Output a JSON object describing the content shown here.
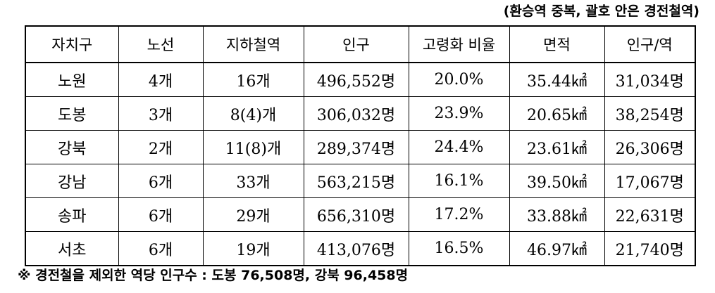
{
  "top_note": "(환승역 중복, 괄호 안은 경전철역)",
  "table": {
    "headers": [
      "자치구",
      "노선",
      "지하철역",
      "인구",
      "고령화 비율",
      "면적",
      "인구/역"
    ],
    "rows": [
      [
        "노원",
        "4개",
        "16개",
        "496,552명",
        "20.0%",
        "35.44㎢",
        "31,034명"
      ],
      [
        "도봉",
        "3개",
        "8(4)개",
        "306,032명",
        "23.9%",
        "20.65㎢",
        "38,254명"
      ],
      [
        "강북",
        "2개",
        "11(8)개",
        "289,374명",
        "24.4%",
        "23.61㎢",
        "26,306명"
      ],
      [
        "강남",
        "6개",
        "33개",
        "563,215명",
        "16.1%",
        "39.50㎢",
        "17,067명"
      ],
      [
        "송파",
        "6개",
        "29개",
        "656,310명",
        "17.2%",
        "33.88㎢",
        "22,631명"
      ],
      [
        "서초",
        "6개",
        "19개",
        "413,076명",
        "16.5%",
        "46.97㎢",
        "21,740명"
      ]
    ]
  },
  "bottom_note": "※ 경전철을 제외한 역당 인구수 : 도봉 76,508명, 강북 96,458명"
}
